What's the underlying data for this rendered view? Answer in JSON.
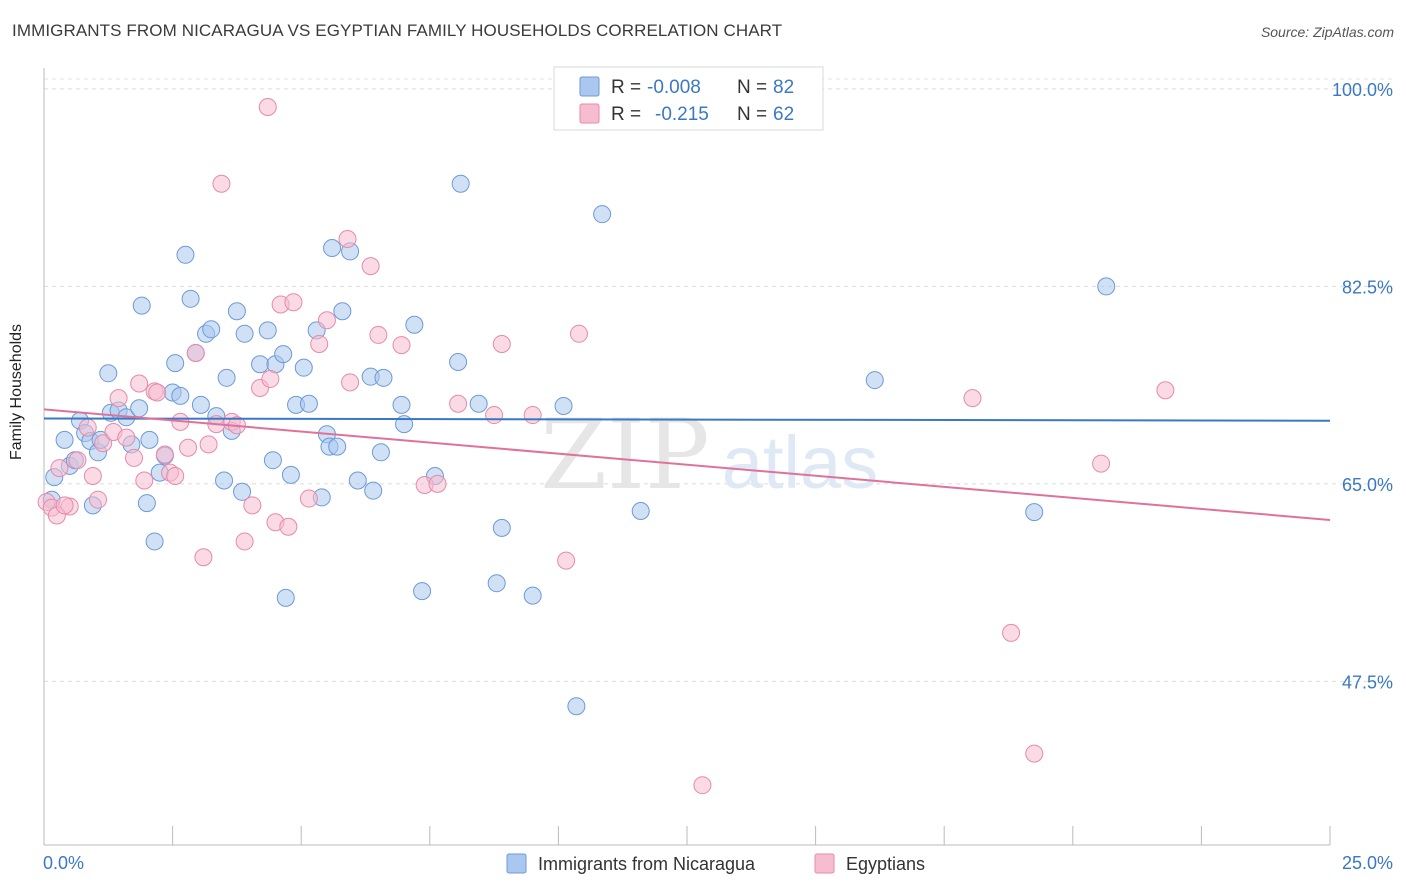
{
  "header": {
    "title": "IMMIGRANTS FROM NICARAGUA VS EGYPTIAN FAMILY HOUSEHOLDS CORRELATION CHART",
    "source": "Source: ZipAtlas.com"
  },
  "watermark": {
    "zip": "ZIP",
    "atlas": "atlas"
  },
  "colors": {
    "blue_fill": "#aac8ef",
    "blue_stroke": "#6d9ad6",
    "blue_line": "#3b78c4",
    "pink_fill": "#f6bcd0",
    "pink_stroke": "#e88aaa",
    "pink_line": "#e0729a",
    "accent_text": "#3b78c4",
    "grid": "#dddddd"
  },
  "legend": {
    "rows": [
      {
        "r_label": "R =",
        "r_value": "-0.008",
        "n_label": "N =",
        "n_value": "82"
      },
      {
        "r_label": "R =",
        "r_value": "-0.215",
        "n_label": "N =",
        "n_value": "62"
      }
    ]
  },
  "chart_data": {
    "type": "scatter",
    "xlabel": "",
    "ylabel": "Family Households",
    "xlim": [
      0,
      25
    ],
    "ylim": [
      33.0,
      101.5
    ],
    "x_tick_labels": [
      "0.0%",
      "25.0%"
    ],
    "y_ticks": [
      47.5,
      65.0,
      82.5,
      100.0
    ],
    "y_tick_labels": [
      "47.5%",
      "65.0%",
      "82.5%",
      "100.0%"
    ],
    "grid": true,
    "legend_position": "top-center",
    "series": [
      {
        "name": "Immigrants from Nicaragua",
        "color": "#aac8ef",
        "r": -0.008,
        "n": 82,
        "trend": [
          [
            0,
            70.8
          ],
          [
            25,
            70.6
          ]
        ],
        "points": [
          [
            0.2,
            65.6
          ],
          [
            0.4,
            68.9
          ],
          [
            0.5,
            66.6
          ],
          [
            0.6,
            67.1
          ],
          [
            0.7,
            70.6
          ],
          [
            0.8,
            69.5
          ],
          [
            0.9,
            68.8
          ],
          [
            0.95,
            63.1
          ],
          [
            1.05,
            67.8
          ],
          [
            1.1,
            68.9
          ],
          [
            1.25,
            74.8
          ],
          [
            1.3,
            71.3
          ],
          [
            1.45,
            71.5
          ],
          [
            1.6,
            70.9
          ],
          [
            1.7,
            68.5
          ],
          [
            1.85,
            71.7
          ],
          [
            1.9,
            80.8
          ],
          [
            2.0,
            63.3
          ],
          [
            2.05,
            68.9
          ],
          [
            2.15,
            59.9
          ],
          [
            2.25,
            66.0
          ],
          [
            2.35,
            67.5
          ],
          [
            2.5,
            73.1
          ],
          [
            2.55,
            75.7
          ],
          [
            2.65,
            72.8
          ],
          [
            2.75,
            85.3
          ],
          [
            2.85,
            81.4
          ],
          [
            2.95,
            76.6
          ],
          [
            3.05,
            72.0
          ],
          [
            3.15,
            78.3
          ],
          [
            3.25,
            78.7
          ],
          [
            3.35,
            71.0
          ],
          [
            3.5,
            65.3
          ],
          [
            3.55,
            74.4
          ],
          [
            3.65,
            69.7
          ],
          [
            3.75,
            80.3
          ],
          [
            3.85,
            64.3
          ],
          [
            3.9,
            78.3
          ],
          [
            4.2,
            75.6
          ],
          [
            4.35,
            78.6
          ],
          [
            4.45,
            67.1
          ],
          [
            4.5,
            75.6
          ],
          [
            4.65,
            76.5
          ],
          [
            4.7,
            54.9
          ],
          [
            4.8,
            65.8
          ],
          [
            4.9,
            72.0
          ],
          [
            5.05,
            75.3
          ],
          [
            5.15,
            72.1
          ],
          [
            5.3,
            78.6
          ],
          [
            5.4,
            63.8
          ],
          [
            5.5,
            69.4
          ],
          [
            5.55,
            68.3
          ],
          [
            5.6,
            85.9
          ],
          [
            5.7,
            68.3
          ],
          [
            5.8,
            80.3
          ],
          [
            5.95,
            85.6
          ],
          [
            6.1,
            65.3
          ],
          [
            6.35,
            74.5
          ],
          [
            6.4,
            64.4
          ],
          [
            6.6,
            74.4
          ],
          [
            6.55,
            67.8
          ],
          [
            6.95,
            72.0
          ],
          [
            7.0,
            70.3
          ],
          [
            7.2,
            79.1
          ],
          [
            7.35,
            55.5
          ],
          [
            7.6,
            65.7
          ],
          [
            8.05,
            75.8
          ],
          [
            8.1,
            91.6
          ],
          [
            8.45,
            72.1
          ],
          [
            8.8,
            56.2
          ],
          [
            8.9,
            61.1
          ],
          [
            9.5,
            55.1
          ],
          [
            10.1,
            71.9
          ],
          [
            10.35,
            45.3
          ],
          [
            10.85,
            88.9
          ],
          [
            11.6,
            62.6
          ],
          [
            16.15,
            74.2
          ],
          [
            19.25,
            62.5
          ],
          [
            20.65,
            82.5
          ],
          [
            0.15,
            63.6
          ]
        ]
      },
      {
        "name": "Egyptians",
        "color": "#f6bcd0",
        "r": -0.215,
        "n": 62,
        "trend": [
          [
            0,
            71.6
          ],
          [
            25,
            61.8
          ]
        ],
        "points": [
          [
            0.05,
            63.4
          ],
          [
            0.3,
            66.4
          ],
          [
            0.5,
            63.0
          ],
          [
            0.65,
            67.1
          ],
          [
            0.85,
            70.0
          ],
          [
            0.95,
            65.7
          ],
          [
            1.05,
            63.6
          ],
          [
            1.15,
            68.6
          ],
          [
            1.35,
            69.6
          ],
          [
            1.45,
            72.6
          ],
          [
            1.6,
            69.1
          ],
          [
            1.75,
            67.3
          ],
          [
            1.85,
            73.9
          ],
          [
            1.95,
            65.3
          ],
          [
            2.15,
            73.2
          ],
          [
            2.2,
            73.1
          ],
          [
            2.35,
            67.6
          ],
          [
            2.45,
            66.0
          ],
          [
            2.55,
            65.7
          ],
          [
            2.65,
            70.5
          ],
          [
            2.8,
            68.2
          ],
          [
            2.95,
            76.6
          ],
          [
            3.1,
            58.5
          ],
          [
            3.2,
            68.5
          ],
          [
            3.35,
            70.3
          ],
          [
            3.45,
            91.6
          ],
          [
            3.65,
            70.5
          ],
          [
            3.75,
            70.2
          ],
          [
            3.9,
            59.9
          ],
          [
            4.05,
            63.1
          ],
          [
            4.2,
            73.5
          ],
          [
            4.35,
            98.4
          ],
          [
            4.4,
            74.3
          ],
          [
            4.5,
            61.6
          ],
          [
            4.6,
            80.9
          ],
          [
            4.75,
            61.2
          ],
          [
            4.85,
            81.1
          ],
          [
            5.15,
            63.7
          ],
          [
            5.35,
            77.4
          ],
          [
            5.5,
            79.5
          ],
          [
            5.9,
            86.7
          ],
          [
            5.95,
            74.0
          ],
          [
            6.35,
            84.3
          ],
          [
            6.5,
            78.2
          ],
          [
            6.95,
            77.3
          ],
          [
            7.4,
            64.9
          ],
          [
            7.65,
            65.0
          ],
          [
            8.05,
            72.1
          ],
          [
            8.75,
            71.1
          ],
          [
            8.9,
            77.4
          ],
          [
            9.5,
            71.1
          ],
          [
            10.15,
            58.2
          ],
          [
            10.4,
            78.3
          ],
          [
            12.8,
            38.3
          ],
          [
            18.05,
            72.6
          ],
          [
            18.8,
            51.8
          ],
          [
            19.25,
            41.1
          ],
          [
            20.55,
            66.8
          ],
          [
            21.8,
            73.3
          ],
          [
            0.15,
            62.9
          ],
          [
            0.25,
            62.2
          ],
          [
            0.4,
            63.1
          ]
        ]
      }
    ]
  },
  "bottom_legend": {
    "items": [
      "Immigrants from Nicaragua",
      "Egyptians"
    ]
  }
}
